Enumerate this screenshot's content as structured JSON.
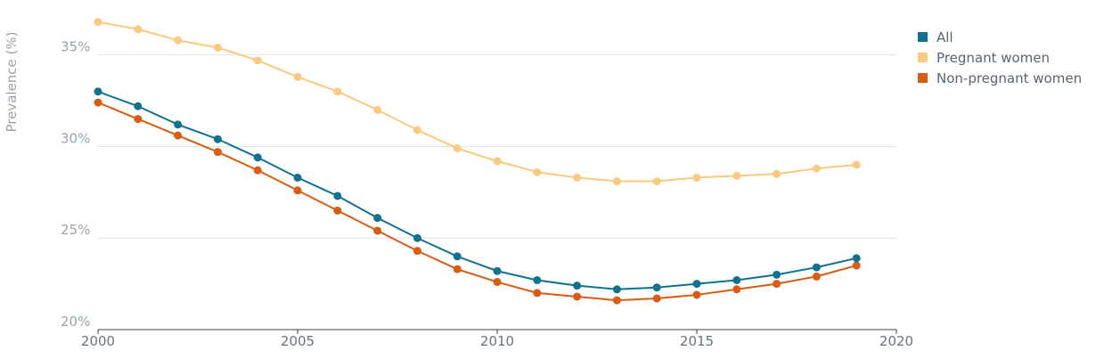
{
  "chart_data": {
    "type": "line",
    "ylabel": "Prevalence (%)",
    "xlabel": "",
    "xlim": [
      2000,
      2020
    ],
    "ylim": [
      20,
      38
    ],
    "x_ticks": [
      "2000",
      "2005",
      "2010",
      "2015",
      "2020"
    ],
    "y_ticks": [
      "20%",
      "25%",
      "30%",
      "35%"
    ],
    "grid": "horizontal",
    "legend_position": "top-right",
    "x": [
      2000,
      2001,
      2002,
      2003,
      2004,
      2005,
      2006,
      2007,
      2008,
      2009,
      2010,
      2011,
      2012,
      2013,
      2014,
      2015,
      2016,
      2017,
      2018,
      2019
    ],
    "series": [
      {
        "name": "All",
        "color": "#0f7390",
        "values": [
          33.0,
          32.2,
          31.2,
          30.4,
          29.4,
          28.3,
          27.3,
          26.1,
          25.0,
          24.0,
          23.2,
          22.7,
          22.4,
          22.2,
          22.3,
          22.5,
          22.7,
          23.0,
          23.4,
          23.9
        ]
      },
      {
        "name": "Pregnant women",
        "color": "#fbc97f",
        "values": [
          36.8,
          36.4,
          35.8,
          35.4,
          34.7,
          33.8,
          33.0,
          32.0,
          30.9,
          29.9,
          29.2,
          28.6,
          28.3,
          28.1,
          28.1,
          28.3,
          28.4,
          28.5,
          28.8,
          29.0
        ]
      },
      {
        "name": "Non-pregnant women",
        "color": "#d95c12",
        "values": [
          32.4,
          31.5,
          30.6,
          29.7,
          28.7,
          27.6,
          26.5,
          25.4,
          24.3,
          23.3,
          22.6,
          22.0,
          21.8,
          21.6,
          21.7,
          21.9,
          22.2,
          22.5,
          22.9,
          23.5
        ]
      }
    ]
  }
}
